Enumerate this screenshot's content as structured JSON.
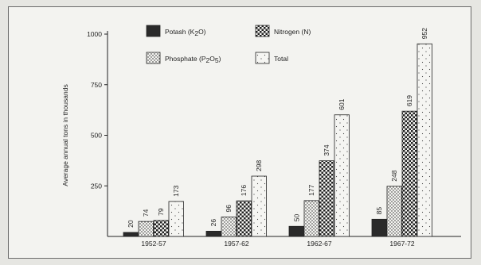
{
  "colors": {
    "background": "#f3f3f0",
    "ink": "#222222",
    "potash": "#2a2a2a"
  },
  "chart_data": {
    "type": "bar",
    "ylabel": "Average annual tons in thousands",
    "xlabel": "",
    "ylim": [
      0,
      1000
    ],
    "yticks": [
      250,
      500,
      750,
      1000
    ],
    "grid": false,
    "legend_position": "top-center",
    "categories": [
      "1952-57",
      "1957-62",
      "1962-67",
      "1967-72"
    ],
    "series": [
      {
        "name": "Potash (K2O)",
        "pattern": "solid",
        "values": [
          20,
          26,
          50,
          85
        ]
      },
      {
        "name": "Phosphate (P2O5)",
        "pattern": "fine-dots",
        "values": [
          74,
          96,
          177,
          248
        ]
      },
      {
        "name": "Nitrogen (N)",
        "pattern": "checker",
        "values": [
          79,
          176,
          374,
          619
        ]
      },
      {
        "name": "Total",
        "pattern": "sparse-dots",
        "values": [
          173,
          298,
          601,
          952
        ]
      }
    ],
    "data_labels": [
      [
        "20",
        "74",
        "79",
        "173"
      ],
      [
        "26",
        "96",
        "176",
        "298"
      ],
      [
        "50",
        "177",
        "374",
        "601"
      ],
      [
        "85",
        "248",
        "619",
        "952"
      ]
    ],
    "legend_labels": [
      {
        "base": "Potash (K",
        "sub": "2",
        "tail": "O)"
      },
      {
        "base": "Phosphate (P",
        "sub": "2",
        "tail": "O",
        "sub2": "5",
        "tail2": ")"
      },
      {
        "base": "Nitrogen (N)"
      },
      {
        "base": "Total"
      }
    ]
  }
}
